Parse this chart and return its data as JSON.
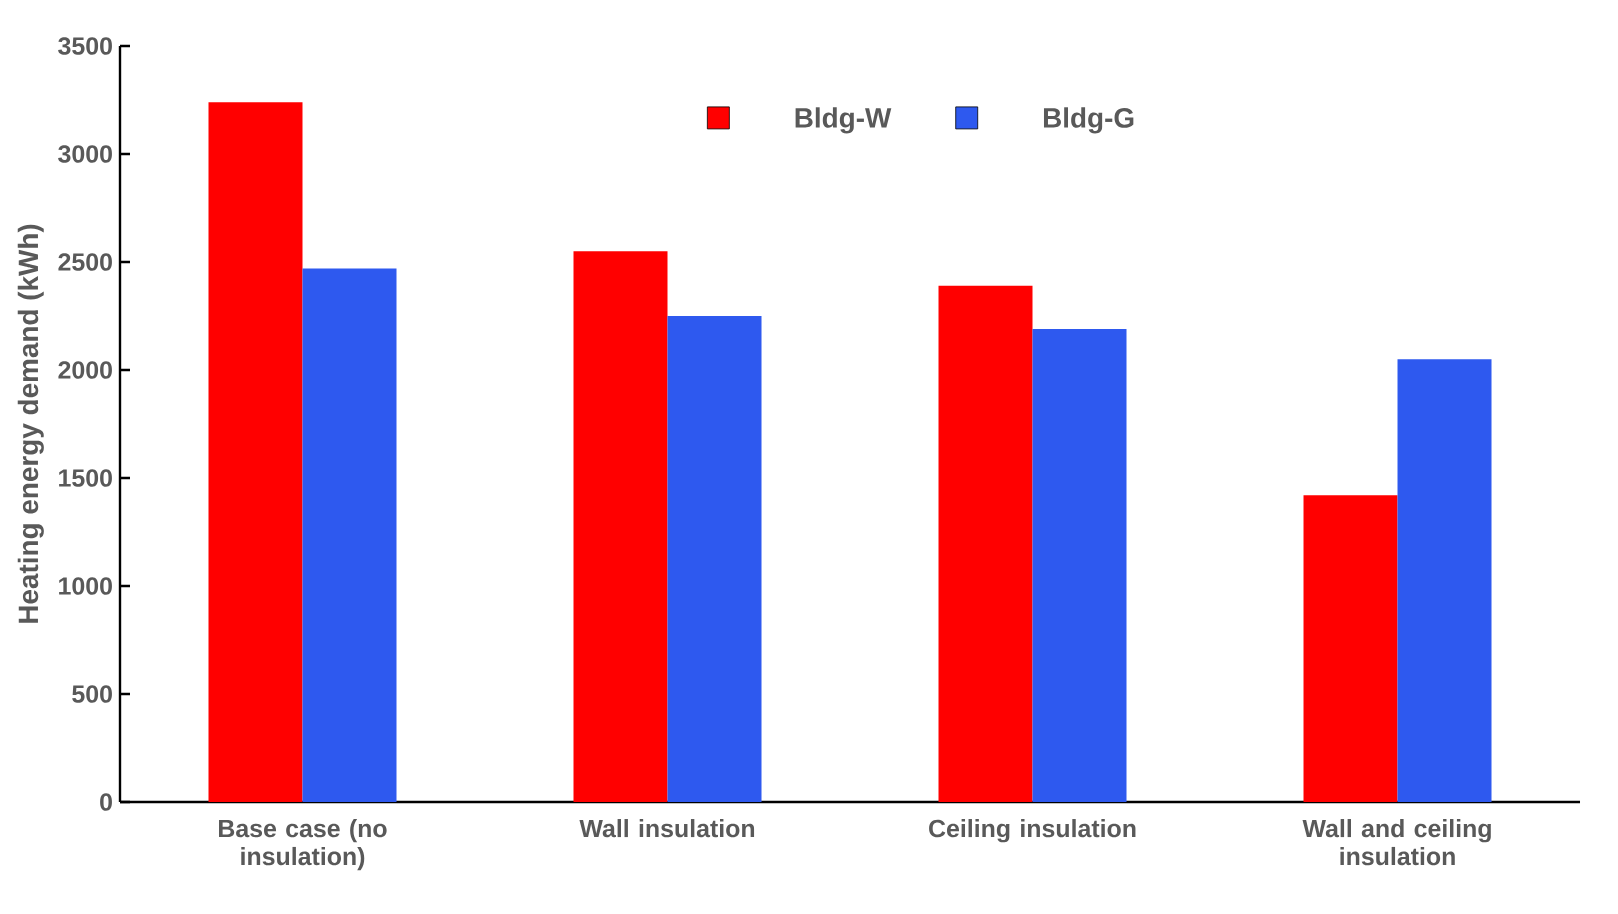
{
  "chart_data": {
    "type": "bar",
    "ylabel": "Heating energy demand (kWh)",
    "categories": [
      "Base case (no insulation)",
      "Wall insulation",
      "Ceiling insulation",
      "Wall and ceiling insulation"
    ],
    "series": [
      {
        "name": "Bldg-W",
        "color": "#ff0000",
        "values": [
          3240,
          2550,
          2390,
          1420
        ]
      },
      {
        "name": "Bldg-G",
        "color": "#2e59ef",
        "values": [
          2470,
          2250,
          2190,
          2050
        ]
      }
    ],
    "ylim": [
      0,
      3500
    ],
    "yticks": [
      0,
      500,
      1000,
      1500,
      2000,
      2500,
      3000,
      3500
    ],
    "legend": "top",
    "grid": false
  }
}
